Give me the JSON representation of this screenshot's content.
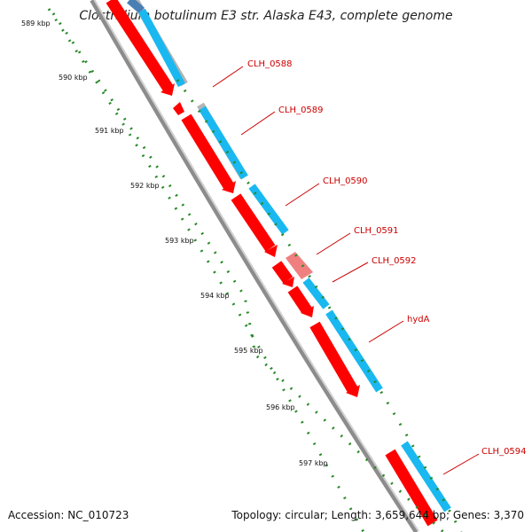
{
  "title": "Clostridium botulinum E3 str. Alaska E43, complete genome",
  "footer": {
    "accession": "Accession: NC_010723",
    "summary": "Topology: circular; Length: 3,659,644 bp; Genes: 3,370"
  },
  "scale_labels": [
    "589 kbp",
    "590 kbp",
    "591 kbp",
    "592 kbp",
    "593 kbp",
    "594 kbp",
    "595 kbp",
    "596 kbp",
    "597 kbp"
  ],
  "gene_labels": [
    "CLH_0588",
    "CLH_0589",
    "CLH_0590",
    "CLH_0591",
    "CLH_0592",
    "hydA",
    "CLH_0594"
  ],
  "colors": {
    "forward_cds": "#ff0000",
    "forward_pseudo": "#f08080",
    "reverse_cds": "#1ab8f0",
    "reverse_dark": "#4a7fb5",
    "backbone": "#8c8c8c",
    "scale_ticks": "#2a8a2a",
    "label_lines": "#cc0000"
  }
}
